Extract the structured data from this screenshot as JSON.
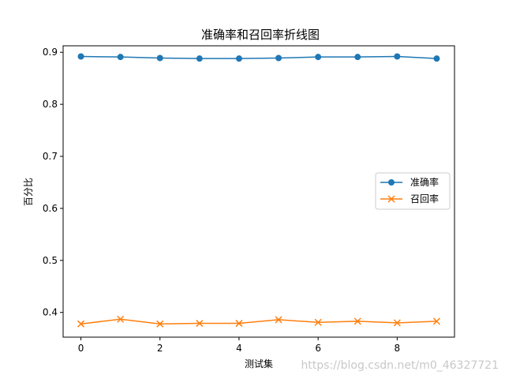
{
  "chart_data": {
    "type": "line",
    "title": "准确率和召回率折线图",
    "xlabel": "测试集",
    "ylabel": "百分比",
    "x": [
      0,
      1,
      2,
      3,
      4,
      5,
      6,
      7,
      8,
      9
    ],
    "xlim": [
      -0.45,
      9.45
    ],
    "ylim": [
      0.3525,
      0.9125
    ],
    "xticks": [
      0,
      2,
      4,
      6,
      8
    ],
    "yticks": [
      0.4,
      0.5,
      0.6,
      0.7,
      0.8,
      0.9
    ],
    "xtick_labels": [
      "0",
      "2",
      "4",
      "6",
      "8"
    ],
    "ytick_labels": [
      "0.4",
      "0.5",
      "0.6",
      "0.7",
      "0.8",
      "0.9"
    ],
    "grid": false,
    "legend_position": "center-right",
    "series": [
      {
        "name": "准确率",
        "marker": "circle",
        "color": "#1f77b4",
        "values": [
          0.892,
          0.891,
          0.889,
          0.888,
          0.888,
          0.889,
          0.891,
          0.891,
          0.892,
          0.888
        ]
      },
      {
        "name": "召回率",
        "marker": "x",
        "color": "#ff7f0e",
        "values": [
          0.378,
          0.387,
          0.378,
          0.379,
          0.379,
          0.386,
          0.381,
          0.383,
          0.38,
          0.383
        ]
      }
    ]
  },
  "watermark": "https://blog.csdn.net/m0_46327721"
}
